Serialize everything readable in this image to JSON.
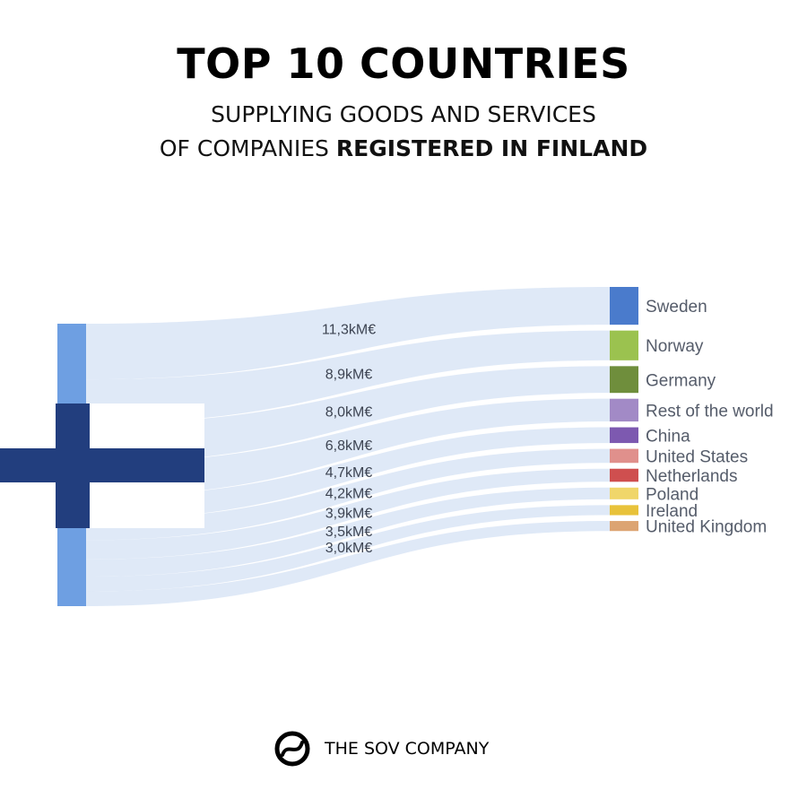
{
  "header": {
    "title": "TOP 10 COUNTRIES",
    "subtitle_line1": "SUPPLYING GOODS AND SERVICES",
    "subtitle_line2_prefix": "OF COMPANIES ",
    "subtitle_line2_bold": "REGISTERED IN FINLAND"
  },
  "chart_data": {
    "type": "sankey",
    "source": "Finland",
    "unit": "kM€",
    "flows": [
      {
        "target": "Sweden",
        "value": 11.3,
        "label": "11,3kM€",
        "color": "#4a7bcc"
      },
      {
        "target": "Norway",
        "value": 8.9,
        "label": "8,9kM€",
        "color": "#9bc24f"
      },
      {
        "target": "Germany",
        "value": 8.0,
        "label": "8,0kM€",
        "color": "#6f8e3c"
      },
      {
        "target": "Rest of the world",
        "value": 6.8,
        "label": "6,8kM€",
        "color": "#a28ac6"
      },
      {
        "target": "China",
        "value": 4.7,
        "label": "4,7kM€",
        "color": "#7d59b0"
      },
      {
        "target": "United States",
        "value": 4.2,
        "label": "4,2kM€",
        "color": "#e0908c"
      },
      {
        "target": "Netherlands",
        "value": 3.9,
        "label": "3,9kM€",
        "color": "#cf4f4f"
      },
      {
        "target": "Poland",
        "value": 3.5,
        "label": "3,5kM€",
        "color": "#f0d66a"
      },
      {
        "target": "Ireland",
        "value": 3.0,
        "label": "3,0kM€",
        "color": "#e8c23a"
      },
      {
        "target": "United Kingdom",
        "value": 3.0,
        "label": "",
        "color": "#dca472"
      }
    ],
    "source_color": "#6e9fe2",
    "flag_cross_color": "#223e7e",
    "link_color": "#dce7f6"
  },
  "footer": {
    "brand": "THE SOV COMPANY"
  }
}
